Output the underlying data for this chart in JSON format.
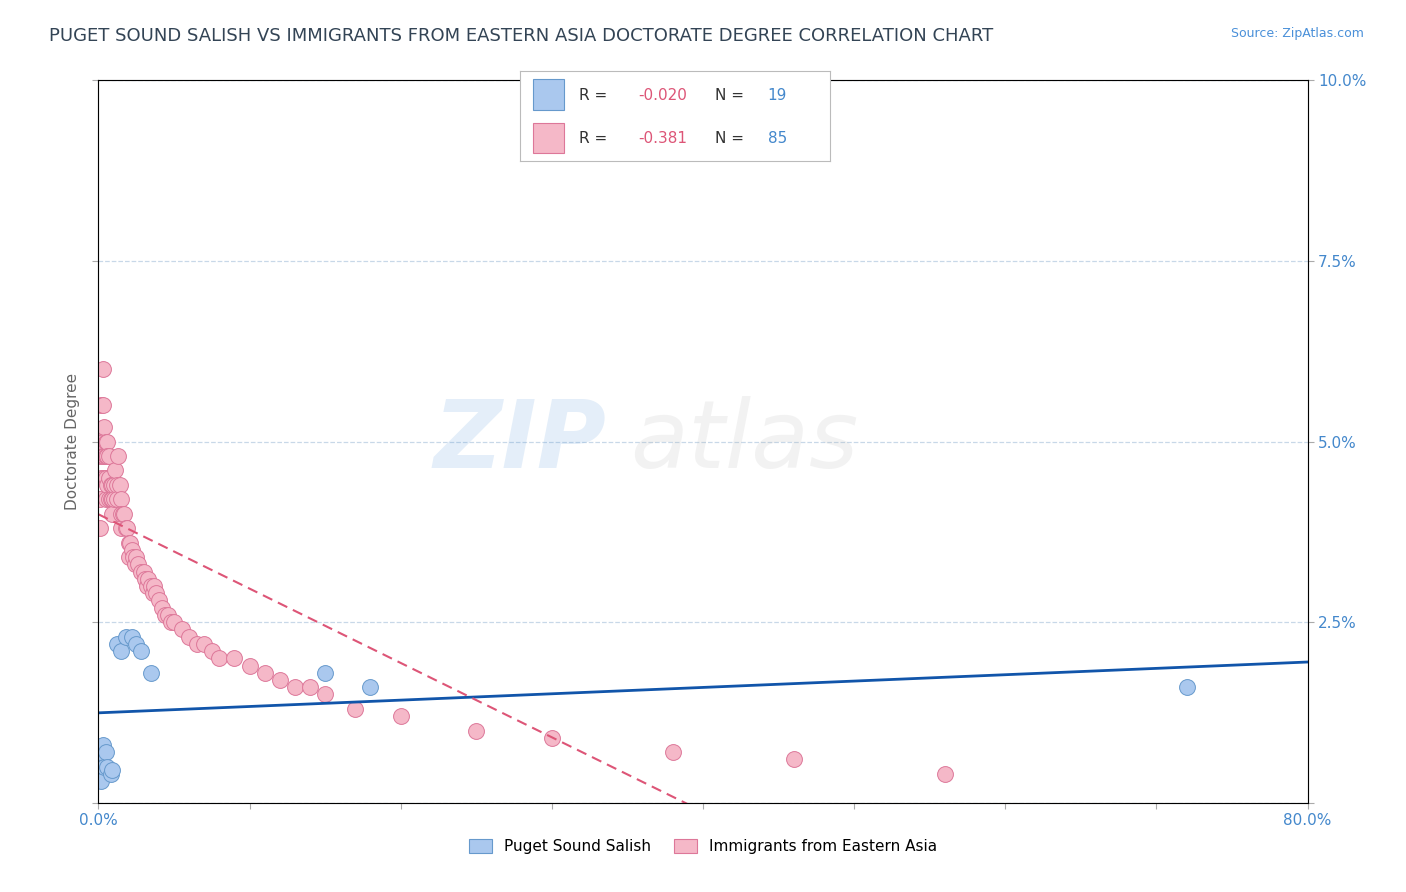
{
  "title": "PUGET SOUND SALISH VS IMMIGRANTS FROM EASTERN ASIA DOCTORATE DEGREE CORRELATION CHART",
  "source": "Source: ZipAtlas.com",
  "ylabel": "Doctorate Degree",
  "xlabel": "",
  "xlim": [
    0.0,
    0.8
  ],
  "ylim": [
    0.0,
    0.1
  ],
  "xticks": [
    0.0,
    0.1,
    0.2,
    0.3,
    0.4,
    0.5,
    0.6,
    0.7,
    0.8
  ],
  "yticks": [
    0.0,
    0.025,
    0.05,
    0.075,
    0.1
  ],
  "background_color": "#ffffff",
  "plot_bg_color": "#ffffff",
  "grid_color": "#c8d8e8",
  "series1_label": "Puget Sound Salish",
  "series1_color": "#aac8ee",
  "series1_edge_color": "#6699cc",
  "series1_R": -0.02,
  "series1_N": 19,
  "series1_line_color": "#1155aa",
  "series2_label": "Immigrants from Eastern Asia",
  "series2_color": "#f5b8c8",
  "series2_edge_color": "#dd7799",
  "series2_R": -0.381,
  "series2_N": 85,
  "series2_line_color": "#dd5577",
  "series1_x": [
    0.001,
    0.001,
    0.002,
    0.003,
    0.004,
    0.005,
    0.006,
    0.008,
    0.009,
    0.012,
    0.015,
    0.018,
    0.022,
    0.025,
    0.028,
    0.035,
    0.15,
    0.18,
    0.72
  ],
  "series1_y": [
    0.007,
    0.004,
    0.003,
    0.008,
    0.005,
    0.007,
    0.005,
    0.004,
    0.0045,
    0.022,
    0.021,
    0.023,
    0.023,
    0.022,
    0.021,
    0.018,
    0.018,
    0.016,
    0.016
  ],
  "series2_x": [
    0.001,
    0.001,
    0.001,
    0.002,
    0.002,
    0.002,
    0.003,
    0.003,
    0.003,
    0.003,
    0.004,
    0.004,
    0.004,
    0.005,
    0.005,
    0.005,
    0.005,
    0.006,
    0.006,
    0.006,
    0.007,
    0.007,
    0.007,
    0.008,
    0.008,
    0.009,
    0.009,
    0.009,
    0.01,
    0.01,
    0.011,
    0.012,
    0.012,
    0.013,
    0.014,
    0.015,
    0.015,
    0.015,
    0.016,
    0.017,
    0.018,
    0.019,
    0.02,
    0.02,
    0.021,
    0.022,
    0.023,
    0.024,
    0.025,
    0.026,
    0.028,
    0.03,
    0.031,
    0.032,
    0.033,
    0.035,
    0.036,
    0.037,
    0.038,
    0.04,
    0.042,
    0.044,
    0.046,
    0.048,
    0.05,
    0.055,
    0.06,
    0.065,
    0.07,
    0.075,
    0.08,
    0.09,
    0.1,
    0.11,
    0.12,
    0.13,
    0.14,
    0.15,
    0.17,
    0.2,
    0.25,
    0.3,
    0.38,
    0.46,
    0.56
  ],
  "series2_y": [
    0.048,
    0.042,
    0.038,
    0.055,
    0.05,
    0.045,
    0.06,
    0.055,
    0.05,
    0.048,
    0.052,
    0.048,
    0.045,
    0.05,
    0.048,
    0.045,
    0.042,
    0.05,
    0.048,
    0.044,
    0.048,
    0.045,
    0.042,
    0.044,
    0.042,
    0.044,
    0.042,
    0.04,
    0.044,
    0.042,
    0.046,
    0.044,
    0.042,
    0.048,
    0.044,
    0.042,
    0.04,
    0.038,
    0.04,
    0.04,
    0.038,
    0.038,
    0.036,
    0.034,
    0.036,
    0.035,
    0.034,
    0.033,
    0.034,
    0.033,
    0.032,
    0.032,
    0.031,
    0.03,
    0.031,
    0.03,
    0.029,
    0.03,
    0.029,
    0.028,
    0.027,
    0.026,
    0.026,
    0.025,
    0.025,
    0.024,
    0.023,
    0.022,
    0.022,
    0.021,
    0.02,
    0.02,
    0.019,
    0.018,
    0.017,
    0.016,
    0.016,
    0.015,
    0.013,
    0.012,
    0.01,
    0.009,
    0.007,
    0.006,
    0.004
  ],
  "title_color": "#334455",
  "title_fontsize": 13,
  "axis_label_color": "#666666",
  "tick_label_color": "#4488cc"
}
